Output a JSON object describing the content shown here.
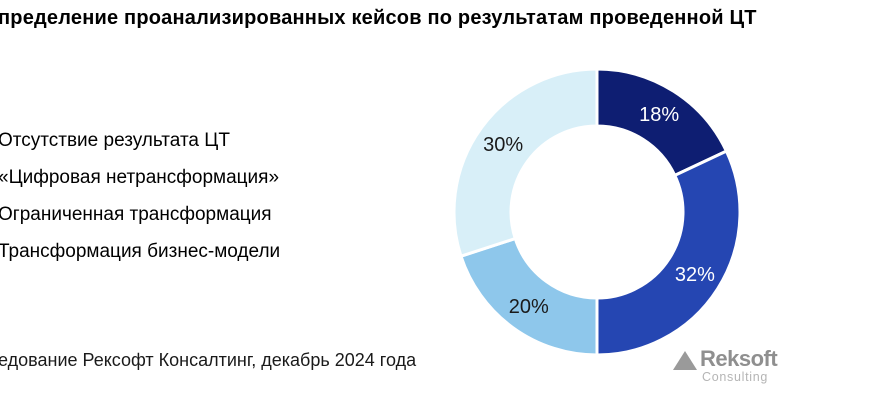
{
  "source_note": "едование Рексофт Консалтинг, декабрь 2024 года",
  "logo": {
    "brand": "Reksoft",
    "subtitle": "Consulting",
    "triangle_color": "#9a9a9a",
    "brand_color": "#8f8f8f",
    "subtitle_color": "#b5b5b5"
  },
  "chart_data": {
    "type": "pie",
    "variant": "donut",
    "title": "пределение проанализированных кейсов по результатам проведенной ЦТ",
    "start_angle_deg": 0,
    "direction": "clockwise",
    "hole_ratio": 0.6,
    "gap_color": "#ffffff",
    "legend_position": "left",
    "label_format": "{value}%",
    "segments": [
      {
        "label": "Отсутствие результата ЦТ",
        "value_pct": 18,
        "color": "#0E1E72",
        "text_color": "#FFFFFF"
      },
      {
        "label": "«Цифровая нетрансформация»",
        "value_pct": 32,
        "color": "#2546B2",
        "text_color": "#FFFFFF"
      },
      {
        "label": "Ограниченная трансформация",
        "value_pct": 20,
        "color": "#8EC7EB",
        "text_color": "#1A1A1A"
      },
      {
        "label": "Трансформация бизнес-модели",
        "value_pct": 30,
        "color": "#D8EFF8",
        "text_color": "#1A1A1A"
      }
    ]
  }
}
